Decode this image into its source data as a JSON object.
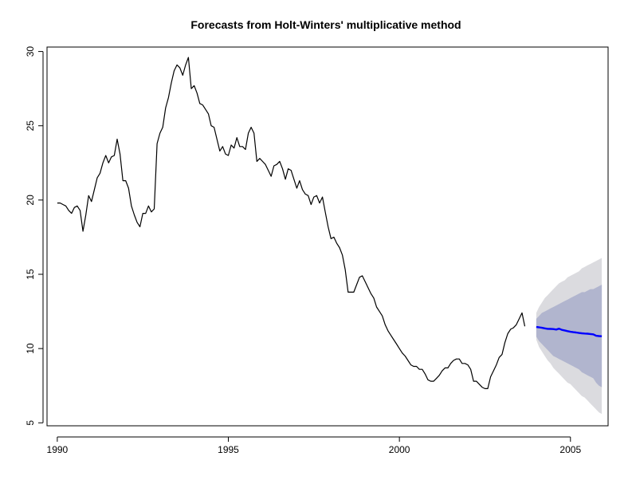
{
  "chart_data": {
    "type": "line",
    "title": "Forecasts from Holt-Winters' multiplicative method",
    "xlabel": "",
    "ylabel": "",
    "xlim": [
      1989.7,
      2006.1
    ],
    "ylim": [
      4.8,
      30.3
    ],
    "x_ticks": [
      1990,
      1995,
      2000,
      2005
    ],
    "x_tick_labels": [
      "1990",
      "1995",
      "2000",
      "2005"
    ],
    "y_ticks": [
      5,
      10,
      15,
      20,
      25,
      30
    ],
    "y_tick_labels": [
      "5",
      "10",
      "15",
      "20",
      "25",
      "30"
    ],
    "grid": false,
    "legend": "none",
    "colors": {
      "observed": "#000000",
      "forecast": "#0000FF",
      "interval80": "#B1B5CE",
      "interval95": "#DBDBDF"
    },
    "observed": {
      "x_start": 1990.0,
      "step": 0.0833333333,
      "values": [
        19.8,
        19.8,
        19.7,
        19.6,
        19.3,
        19.1,
        19.5,
        19.6,
        19.3,
        17.9,
        19.0,
        20.3,
        19.9,
        20.7,
        21.5,
        21.8,
        22.5,
        23.0,
        22.5,
        22.9,
        23.0,
        24.1,
        23.1,
        21.3,
        21.3,
        20.8,
        19.6,
        19.0,
        18.5,
        18.2,
        19.1,
        19.1,
        19.6,
        19.2,
        19.4,
        23.8,
        24.5,
        24.9,
        26.2,
        26.9,
        27.9,
        28.7,
        29.1,
        28.9,
        28.4,
        29.1,
        29.6,
        27.5,
        27.7,
        27.2,
        26.5,
        26.4,
        26.1,
        25.8,
        25.0,
        24.9,
        24.1,
        23.3,
        23.6,
        23.1,
        23.0,
        23.7,
        23.5,
        24.2,
        23.6,
        23.6,
        23.4,
        24.5,
        24.9,
        24.5,
        22.6,
        22.8,
        22.6,
        22.4,
        22.0,
        21.6,
        22.3,
        22.4,
        22.6,
        22.1,
        21.4,
        22.1,
        22.0,
        21.4,
        20.8,
        21.3,
        20.7,
        20.4,
        20.3,
        19.7,
        20.2,
        20.3,
        19.8,
        20.2,
        19.2,
        18.2,
        17.4,
        17.5,
        17.1,
        16.8,
        16.3,
        15.3,
        13.8,
        13.8,
        13.8,
        14.3,
        14.8,
        14.9,
        14.5,
        14.1,
        13.7,
        13.4,
        12.8,
        12.5,
        12.2,
        11.6,
        11.2,
        10.9,
        10.6,
        10.3,
        10.0,
        9.7,
        9.5,
        9.2,
        8.9,
        8.8,
        8.8,
        8.6,
        8.6,
        8.3,
        7.9,
        7.8,
        7.8,
        8.0,
        8.2,
        8.5,
        8.7,
        8.7,
        9.0,
        9.2,
        9.3,
        9.3,
        9.0,
        9.0,
        8.9,
        8.6,
        7.8,
        7.8,
        7.6,
        7.4,
        7.3,
        7.3,
        8.1,
        8.5,
        8.9,
        9.4,
        9.6,
        10.4,
        11.0,
        11.3,
        11.4,
        11.6,
        12.0,
        12.4,
        11.5
      ]
    },
    "forecast": {
      "x": [
        2004.0,
        2004.0833,
        2004.1667,
        2004.25,
        2004.3333,
        2004.4167,
        2004.5,
        2004.5833,
        2004.6667,
        2004.75,
        2004.8333,
        2004.9167,
        2005.0,
        2005.0833,
        2005.1667,
        2005.25,
        2005.3333,
        2005.4167,
        2005.5,
        2005.5833,
        2005.6667,
        2005.75,
        2005.8333,
        2005.9167
      ],
      "mean": [
        11.45,
        11.43,
        11.4,
        11.36,
        11.33,
        11.32,
        11.31,
        11.28,
        11.34,
        11.26,
        11.22,
        11.17,
        11.13,
        11.1,
        11.08,
        11.05,
        11.03,
        11.01,
        11.0,
        10.98,
        10.96,
        10.86,
        10.84,
        10.83
      ],
      "lo80": [
        10.8,
        10.5,
        10.3,
        10.1,
        9.9,
        9.7,
        9.5,
        9.4,
        9.3,
        9.2,
        9.1,
        9.0,
        8.9,
        8.8,
        8.7,
        8.6,
        8.4,
        8.3,
        8.2,
        8.1,
        8.0,
        7.7,
        7.5,
        7.4
      ],
      "hi80": [
        12.0,
        12.2,
        12.4,
        12.5,
        12.6,
        12.7,
        12.8,
        12.9,
        13.0,
        13.1,
        13.2,
        13.3,
        13.4,
        13.5,
        13.6,
        13.7,
        13.8,
        13.8,
        13.9,
        14.0,
        14.0,
        14.1,
        14.2,
        14.3
      ],
      "lo95": [
        10.6,
        10.1,
        9.8,
        9.5,
        9.2,
        9.0,
        8.7,
        8.5,
        8.3,
        8.1,
        7.9,
        7.7,
        7.6,
        7.4,
        7.2,
        7.0,
        6.8,
        6.7,
        6.5,
        6.3,
        6.1,
        5.9,
        5.7,
        5.6
      ],
      "hi95": [
        12.4,
        12.8,
        13.1,
        13.4,
        13.6,
        13.8,
        14.0,
        14.2,
        14.4,
        14.5,
        14.6,
        14.8,
        14.9,
        15.0,
        15.1,
        15.2,
        15.4,
        15.5,
        15.6,
        15.7,
        15.8,
        15.9,
        16.0,
        16.1
      ]
    }
  }
}
